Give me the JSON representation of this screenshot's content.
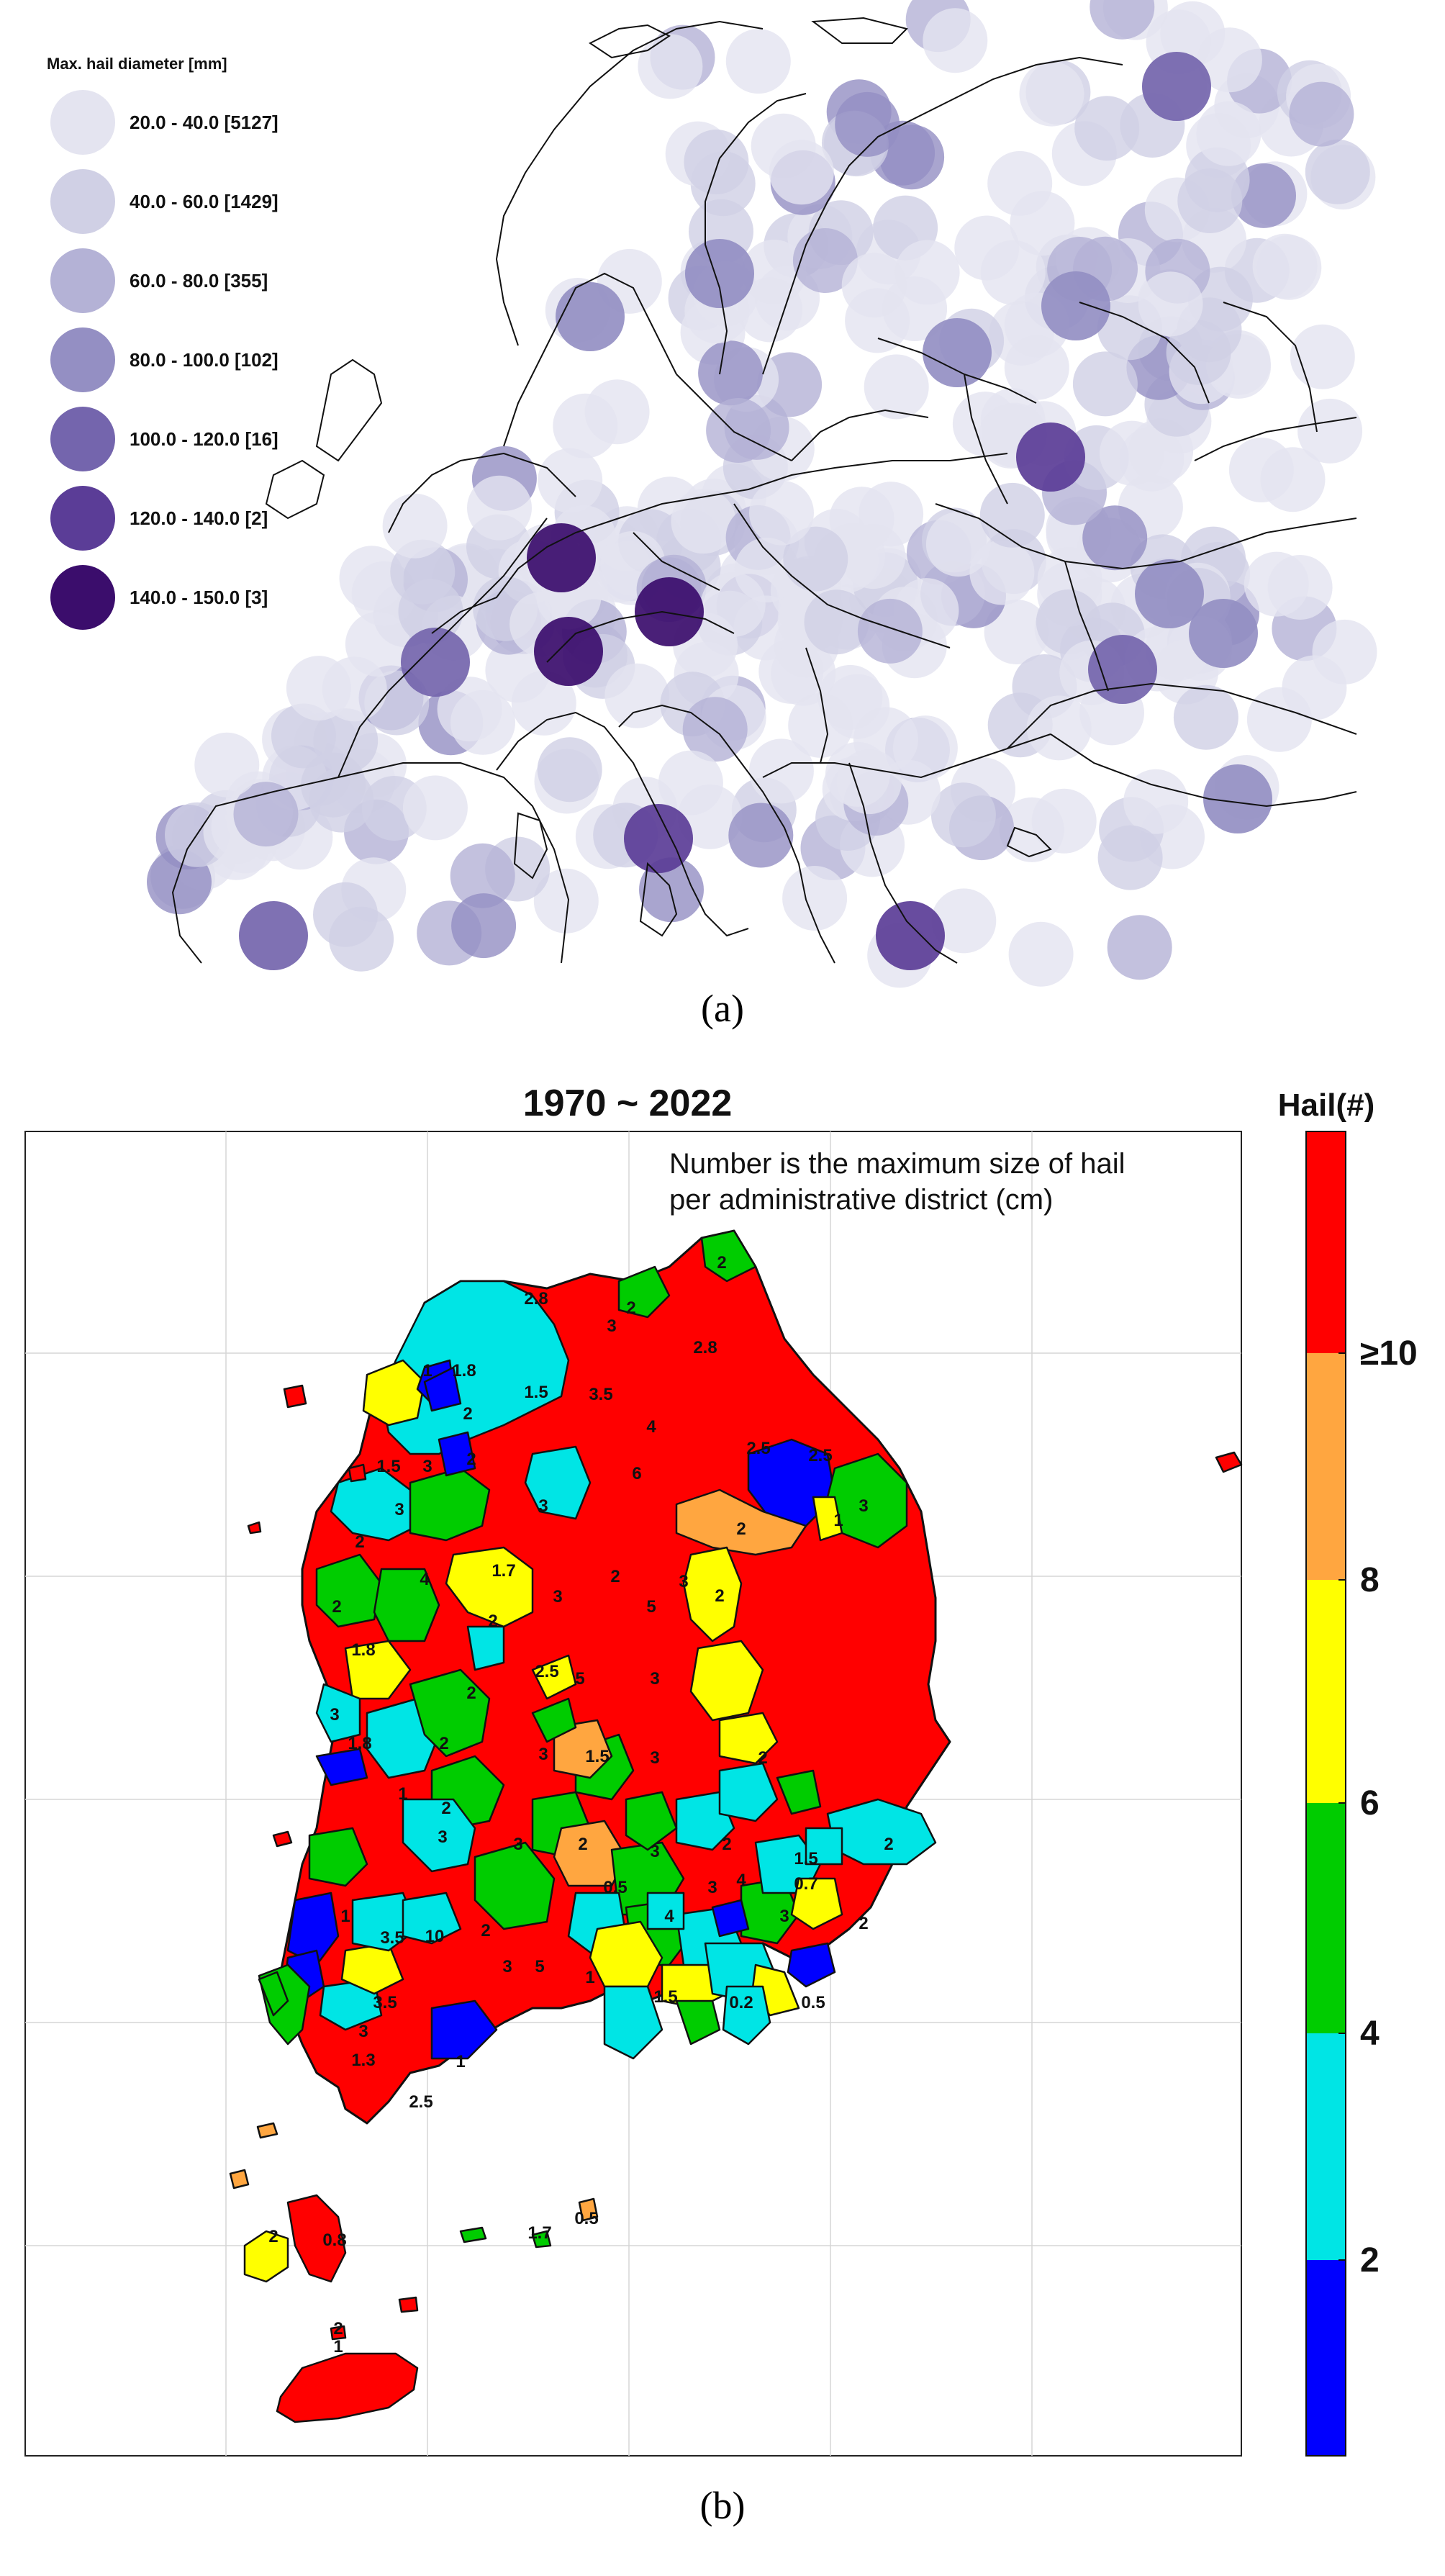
{
  "figure_a": {
    "caption": "(a)",
    "legend_title": "Max. hail diameter [mm]",
    "legend_items": [
      {
        "label": "20.0 - 40.0  [5127]",
        "color": "#e4e4f0"
      },
      {
        "label": "40.0 - 60.0  [1429]",
        "color": "#d0d0e5"
      },
      {
        "label": "60.0 - 80.0  [355]",
        "color": "#b4b2d6"
      },
      {
        "label": "80.0 - 100.0  [102]",
        "color": "#948fc3"
      },
      {
        "label": "100.0 - 120.0  [16]",
        "color": "#7465ad"
      },
      {
        "label": "120.0 - 140.0  [2]",
        "color": "#5b3d97"
      },
      {
        "label": "140.0 - 150.0  [3]",
        "color": "#3b0d6c"
      }
    ]
  },
  "figure_b": {
    "caption": "(b)",
    "title": "1970 ~ 2022",
    "note_line1": "Number is the maximum size of hail",
    "note_line2": "per administrative district (cm)",
    "colorbar_title": "Hail(#)",
    "colorbar_ticks": [
      "2",
      "4",
      "6",
      "8",
      "≥10"
    ],
    "colorbar_colors": [
      "#0000ff",
      "#00e5e5",
      "#00cc00",
      "#ffff00",
      "#ffa640",
      "#ff0000"
    ],
    "district_labels": [
      "2",
      "2.8",
      "3",
      "2",
      "2.8",
      "1",
      "1.8",
      "1.5",
      "3.5",
      "4",
      "2",
      "2.5",
      "2.5",
      "1.5",
      "3",
      "2",
      "3",
      "6",
      "3",
      "2",
      "1",
      "3",
      "2",
      "4",
      "1.7",
      "3",
      "2",
      "3",
      "2",
      "2",
      "1.8",
      "2",
      "5",
      "2.5",
      "5",
      "3",
      "2",
      "3",
      "1.8",
      "2",
      "3",
      "1.5",
      "3",
      "2",
      "1",
      "2",
      "3",
      "3",
      "2",
      "1.5",
      "0.7",
      "2",
      "2",
      "3",
      "4",
      "0.5",
      "3",
      "4",
      "3",
      "2",
      "1",
      "3.5",
      "10",
      "2",
      "3",
      "5",
      "1",
      "1.5",
      "0.2",
      "0.5",
      "3.5",
      "3",
      "1.3",
      "2.5",
      "1",
      "2",
      "0.8",
      "0.5",
      "1.7",
      "2",
      "1"
    ]
  }
}
